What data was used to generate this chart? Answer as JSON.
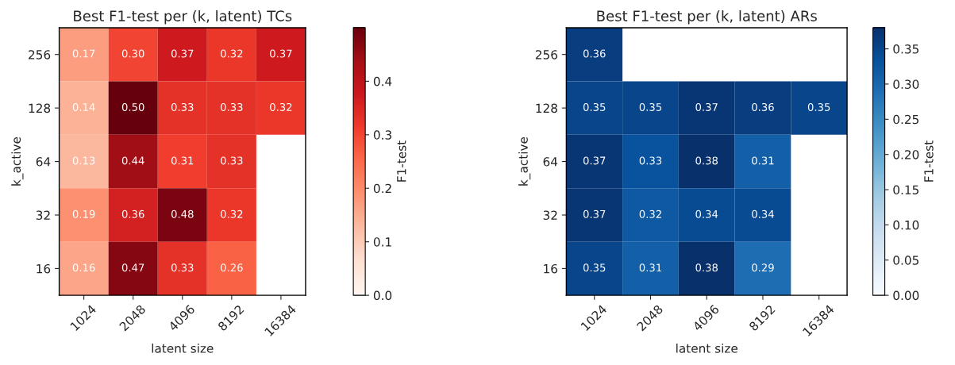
{
  "chart_data": [
    {
      "type": "heatmap",
      "title": "Best F1-test per (k, latent) TCs",
      "xlabel": "latent size",
      "ylabel": "k_active",
      "clabel": "F1-test",
      "categories": [
        "1024",
        "2048",
        "4096",
        "8192",
        "16384"
      ],
      "y_categories": [
        "256",
        "128",
        "64",
        "32",
        "16"
      ],
      "cells": [
        [
          0.17,
          0.3,
          0.37,
          0.32,
          0.37
        ],
        [
          0.14,
          0.5,
          0.33,
          0.33,
          0.32
        ],
        [
          0.13,
          0.44,
          0.31,
          0.33,
          null
        ],
        [
          0.19,
          0.36,
          0.48,
          0.32,
          null
        ],
        [
          0.16,
          0.47,
          0.33,
          0.26,
          null
        ]
      ],
      "cell_labels": [
        [
          "0.17",
          "0.30",
          "0.37",
          "0.32",
          "0.37"
        ],
        [
          "0.14",
          "0.50",
          "0.33",
          "0.33",
          "0.32"
        ],
        [
          "0.13",
          "0.44",
          "0.31",
          "0.33",
          null
        ],
        [
          "0.19",
          "0.36",
          "0.48",
          "0.32",
          null
        ],
        [
          "0.16",
          "0.47",
          "0.33",
          "0.26",
          null
        ]
      ],
      "colors": [
        "#fff5f0",
        "#fee0d2",
        "#fcbba1",
        "#fc9272",
        "#fb6a4a",
        "#ef3b2c",
        "#cb181d",
        "#a50f15",
        "#67000d"
      ],
      "clim": [
        0,
        0.5
      ],
      "cticks": [
        {
          "value": 0,
          "label": "0.0"
        },
        0.1,
        0.2,
        0.3,
        0.4
      ]
    },
    {
      "type": "heatmap",
      "title": "Best F1-test per (k, latent) ARs",
      "xlabel": "latent size",
      "ylabel": "k_active",
      "clabel": "F1-test",
      "categories": [
        "1024",
        "2048",
        "4096",
        "8192",
        "16384"
      ],
      "y_categories": [
        "256",
        "128",
        "64",
        "32",
        "16"
      ],
      "cells": [
        [
          0.36,
          null,
          null,
          null,
          null
        ],
        [
          0.35,
          0.35,
          0.37,
          0.36,
          0.35
        ],
        [
          0.37,
          0.33,
          0.38,
          0.31,
          null
        ],
        [
          0.37,
          0.32,
          0.34,
          0.34,
          null
        ],
        [
          0.35,
          0.31,
          0.38,
          0.29,
          null
        ]
      ],
      "cell_labels": [
        [
          "0.36",
          null,
          null,
          null,
          null
        ],
        [
          "0.35",
          "0.35",
          "0.37",
          "0.36",
          "0.35"
        ],
        [
          "0.37",
          "0.33",
          "0.38",
          "0.31",
          null
        ],
        [
          "0.37",
          "0.32",
          "0.34",
          "0.34",
          null
        ],
        [
          "0.35",
          "0.31",
          "0.38",
          "0.29",
          null
        ]
      ],
      "colors": [
        "#f7fbff",
        "#deebf7",
        "#c6dbef",
        "#9ecae1",
        "#6baed6",
        "#4292c6",
        "#2171b5",
        "#08519c",
        "#08306b"
      ],
      "clim": [
        0,
        0.38
      ],
      "cticks": [
        {
          "value": 0,
          "label": "0.00"
        },
        {
          "value": 0.05,
          "label": "0.05"
        },
        {
          "value": 0.1,
          "label": "0.10"
        },
        {
          "value": 0.15,
          "label": "0.15"
        },
        {
          "value": 0.2,
          "label": "0.20"
        },
        {
          "value": 0.25,
          "label": "0.25"
        },
        {
          "value": 0.3,
          "label": "0.30"
        },
        {
          "value": 0.35,
          "label": "0.35"
        }
      ]
    }
  ]
}
